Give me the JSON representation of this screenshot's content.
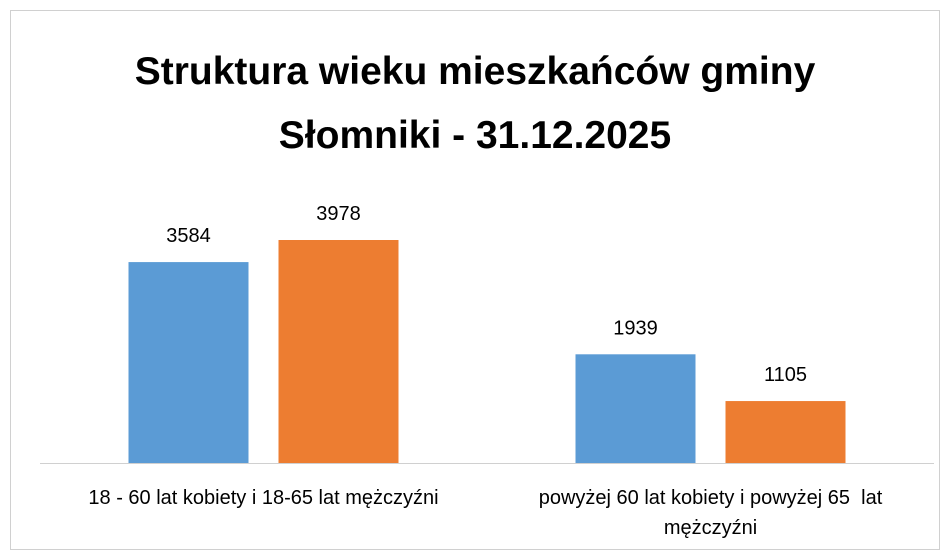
{
  "chart_data": {
    "type": "bar",
    "title": "Struktura wieku mieszkańców gminy Słomniki - 31.12.2025",
    "categories": [
      "18 - 60 lat kobiety i 18-65 lat mężczyźni",
      "powyżej 60 lat kobiety i powyżej 65  lat mężczyźni"
    ],
    "series": [
      {
        "color": "#5b9bd5",
        "values": [
          3584,
          1939
        ]
      },
      {
        "color": "#ed7d31",
        "values": [
          3978,
          1105
        ]
      }
    ]
  }
}
